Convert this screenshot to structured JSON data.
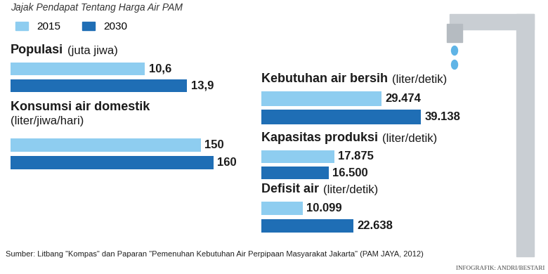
{
  "title": "Jajak Pendapat Tentang Harga Air PAM",
  "source": "Sumber: Litbang \"Kompas\" dan Paparan \"Pemenuhan Kebutuhan Air Perpipaan Masyarakat Jakarta\" (PAM JAYA, 2012)",
  "credit": "INFOGRAFIK: ANDRI/BESTARI",
  "chart_data": [
    {
      "type": "bar",
      "orientation": "horizontal",
      "title": "Populasi",
      "subtitle": "(juta jiwa)",
      "categories": [
        null
      ],
      "xlim": [
        0,
        18
      ],
      "tick_labels": false,
      "data_labels": true,
      "legend": "upper left",
      "series": [
        {
          "name": "2015",
          "color": "#8ecdf0",
          "values": [
            10.6
          ],
          "value_labels": [
            "10,6"
          ]
        },
        {
          "name": "2030",
          "color": "#1f6eb5",
          "values": [
            13.9
          ],
          "value_labels": [
            "13,9"
          ]
        }
      ]
    },
    {
      "type": "bar",
      "orientation": "horizontal",
      "title": "Konsumsi air domestik",
      "subtitle": "(liter/jiwa/hari)",
      "categories": [
        null
      ],
      "xlim": [
        0,
        180
      ],
      "tick_labels": false,
      "data_labels": true,
      "series": [
        {
          "name": "2015",
          "color": "#8ecdf0",
          "values": [
            150
          ],
          "value_labels": [
            "150"
          ]
        },
        {
          "name": "2030",
          "color": "#1f6eb5",
          "values": [
            160
          ],
          "value_labels": [
            "160"
          ]
        }
      ]
    },
    {
      "type": "bar",
      "orientation": "horizontal",
      "title": "Kebutuhan air bersih",
      "subtitle": "(liter/detik)",
      "categories": [
        null
      ],
      "xlim": [
        0,
        60000
      ],
      "tick_labels": false,
      "data_labels": true,
      "series": [
        {
          "name": "2015",
          "color": "#8ecdf0",
          "values": [
            29474
          ],
          "value_labels": [
            "29.474"
          ]
        },
        {
          "name": "2030",
          "color": "#1f6eb5",
          "values": [
            39138
          ],
          "value_labels": [
            "39.138"
          ]
        }
      ]
    },
    {
      "type": "bar",
      "orientation": "horizontal",
      "title": "Kapasitas produksi",
      "subtitle": "(liter/detik)",
      "categories": [
        null
      ],
      "xlim": [
        0,
        60000
      ],
      "tick_labels": false,
      "data_labels": true,
      "series": [
        {
          "name": "2015",
          "color": "#8ecdf0",
          "values": [
            17875
          ],
          "value_labels": [
            "17.875"
          ]
        },
        {
          "name": "2030",
          "color": "#1f6eb5",
          "values": [
            16500
          ],
          "value_labels": [
            "16.500"
          ]
        }
      ]
    },
    {
      "type": "bar",
      "orientation": "horizontal",
      "title": "Defisit air",
      "subtitle": "(liter/detik)",
      "categories": [
        null
      ],
      "xlim": [
        0,
        60000
      ],
      "tick_labels": false,
      "data_labels": true,
      "series": [
        {
          "name": "2015",
          "color": "#8ecdf0",
          "values": [
            10099
          ],
          "value_labels": [
            "10.099"
          ]
        },
        {
          "name": "2030",
          "color": "#1f6eb5",
          "values": [
            22638
          ],
          "value_labels": [
            "22.638"
          ]
        }
      ]
    }
  ]
}
